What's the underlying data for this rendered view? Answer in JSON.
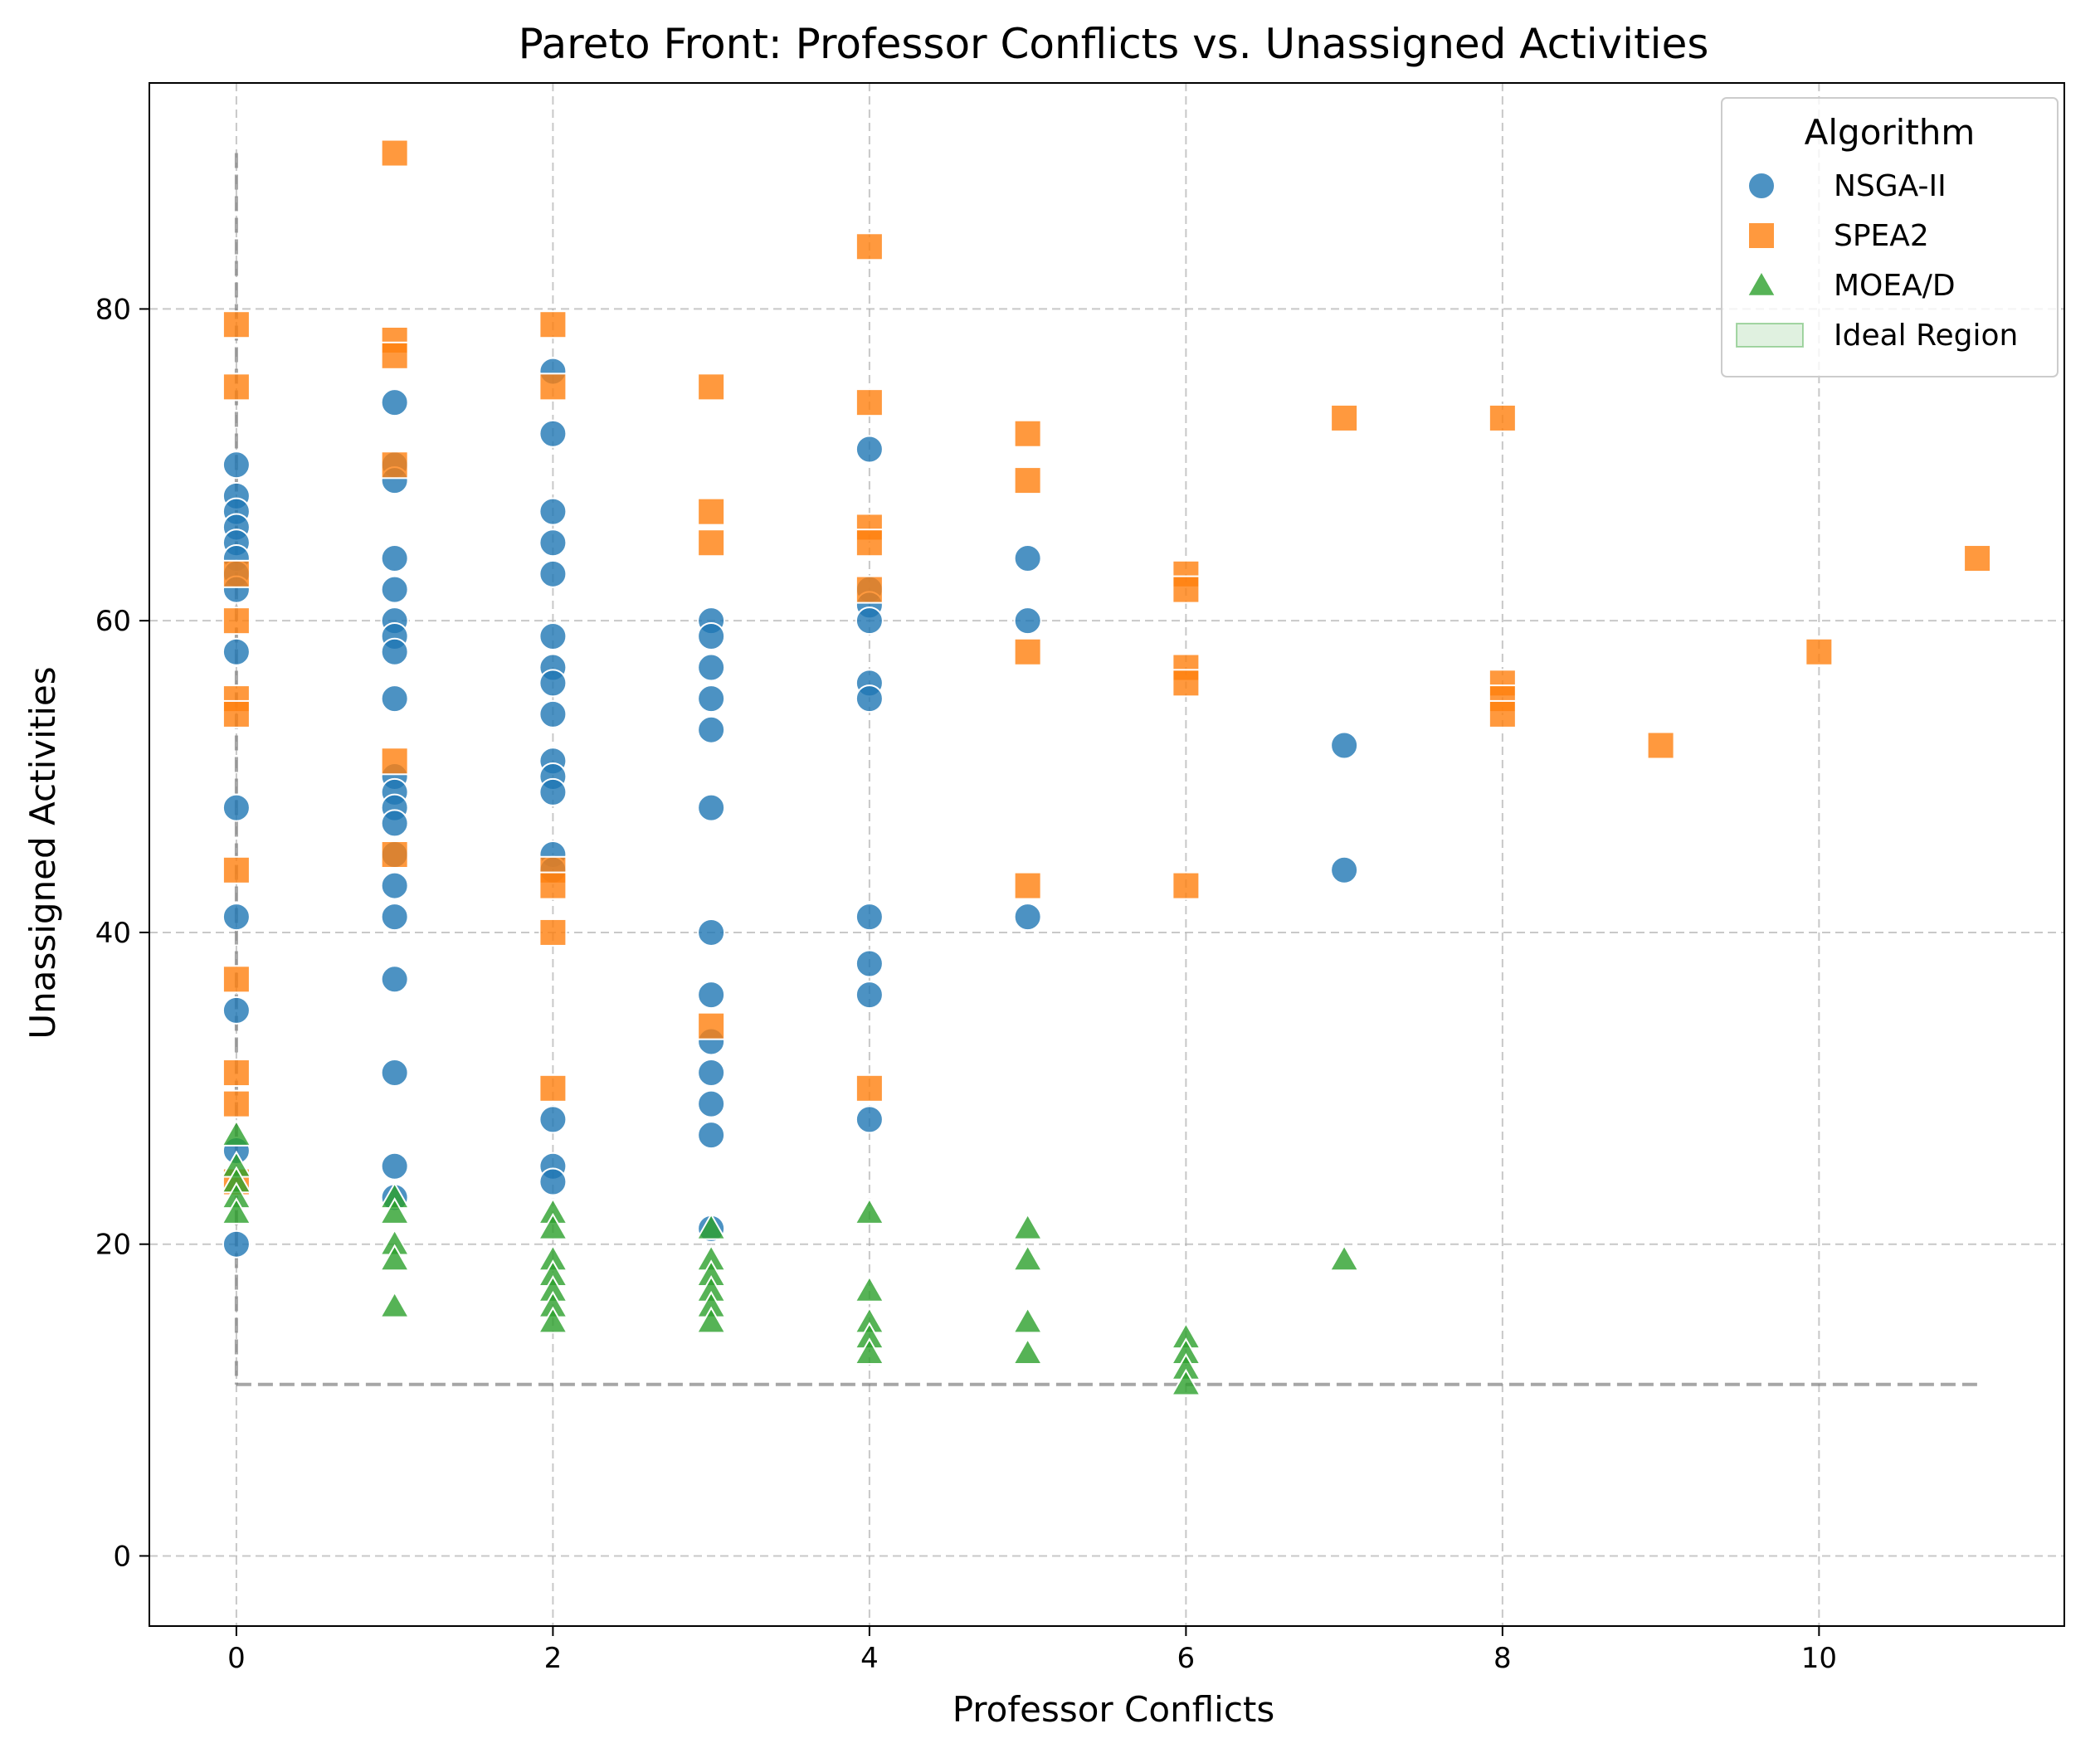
{
  "chart_data": {
    "type": "scatter",
    "title": "Pareto Front: Professor Conflicts vs. Unassigned Activities",
    "xlabel": "Professor Conflicts",
    "ylabel": "Unassigned Activities",
    "xlim": [
      -0.55,
      11.55
    ],
    "ylim": [
      -4.5,
      94.5
    ],
    "xticks": [
      0,
      2,
      4,
      6,
      8,
      10
    ],
    "yticks": [
      0,
      20,
      40,
      60,
      80
    ],
    "grid": true,
    "legend": {
      "title": "Algorithm",
      "placement": "top-right",
      "entries": [
        "NSGA-II",
        "SPEA2",
        "MOEA/D",
        "Ideal Region"
      ]
    },
    "ideal_region": {
      "label": "Ideal Region",
      "x_min": 0,
      "x_max": 11,
      "y_min": 11,
      "y_max": 90,
      "color": "#2ca02c"
    },
    "series": [
      {
        "name": "NSGA-II",
        "marker": "circle",
        "color": "#1f77b4",
        "points": [
          [
            0,
            70
          ],
          [
            0,
            68
          ],
          [
            0,
            67
          ],
          [
            0,
            66
          ],
          [
            0,
            65
          ],
          [
            0,
            64
          ],
          [
            0,
            63
          ],
          [
            0,
            62
          ],
          [
            0,
            58
          ],
          [
            0,
            48
          ],
          [
            0,
            41
          ],
          [
            0,
            35
          ],
          [
            0,
            26
          ],
          [
            0,
            20
          ],
          [
            1,
            74
          ],
          [
            1,
            70
          ],
          [
            1,
            69
          ],
          [
            1,
            64
          ],
          [
            1,
            62
          ],
          [
            1,
            60
          ],
          [
            1,
            59
          ],
          [
            1,
            58
          ],
          [
            1,
            55
          ],
          [
            1,
            50
          ],
          [
            1,
            49
          ],
          [
            1,
            48
          ],
          [
            1,
            47
          ],
          [
            1,
            45
          ],
          [
            1,
            43
          ],
          [
            1,
            41
          ],
          [
            1,
            37
          ],
          [
            1,
            31
          ],
          [
            1,
            25
          ],
          [
            1,
            23
          ],
          [
            2,
            76
          ],
          [
            2,
            72
          ],
          [
            2,
            67
          ],
          [
            2,
            65
          ],
          [
            2,
            63
          ],
          [
            2,
            59
          ],
          [
            2,
            57
          ],
          [
            2,
            56
          ],
          [
            2,
            54
          ],
          [
            2,
            51
          ],
          [
            2,
            50
          ],
          [
            2,
            49
          ],
          [
            2,
            45
          ],
          [
            2,
            44
          ],
          [
            2,
            28
          ],
          [
            2,
            25
          ],
          [
            2,
            24
          ],
          [
            3,
            60
          ],
          [
            3,
            59
          ],
          [
            3,
            57
          ],
          [
            3,
            55
          ],
          [
            3,
            53
          ],
          [
            3,
            48
          ],
          [
            3,
            40
          ],
          [
            3,
            36
          ],
          [
            3,
            33
          ],
          [
            3,
            31
          ],
          [
            3,
            29
          ],
          [
            3,
            27
          ],
          [
            3,
            21
          ],
          [
            4,
            71
          ],
          [
            4,
            62
          ],
          [
            4,
            61
          ],
          [
            4,
            60
          ],
          [
            4,
            56
          ],
          [
            4,
            55
          ],
          [
            4,
            41
          ],
          [
            4,
            38
          ],
          [
            4,
            36
          ],
          [
            4,
            28
          ],
          [
            5,
            64
          ],
          [
            5,
            60
          ],
          [
            5,
            41
          ],
          [
            7,
            52
          ],
          [
            7,
            44
          ]
        ]
      },
      {
        "name": "SPEA2",
        "marker": "square",
        "color": "#ff7f0e",
        "points": [
          [
            0,
            79
          ],
          [
            0,
            75
          ],
          [
            0,
            63
          ],
          [
            0,
            60
          ],
          [
            0,
            55
          ],
          [
            0,
            54
          ],
          [
            0,
            44
          ],
          [
            0,
            37
          ],
          [
            0,
            31
          ],
          [
            0,
            29
          ],
          [
            0,
            24
          ],
          [
            1,
            90
          ],
          [
            1,
            78
          ],
          [
            1,
            77
          ],
          [
            1,
            70
          ],
          [
            1,
            51
          ],
          [
            1,
            45
          ],
          [
            2,
            79
          ],
          [
            2,
            75
          ],
          [
            2,
            44
          ],
          [
            2,
            43
          ],
          [
            2,
            40
          ],
          [
            2,
            30
          ],
          [
            3,
            75
          ],
          [
            3,
            67
          ],
          [
            3,
            65
          ],
          [
            3,
            34
          ],
          [
            4,
            84
          ],
          [
            4,
            74
          ],
          [
            4,
            66
          ],
          [
            4,
            65
          ],
          [
            4,
            62
          ],
          [
            4,
            30
          ],
          [
            5,
            72
          ],
          [
            5,
            69
          ],
          [
            5,
            58
          ],
          [
            5,
            43
          ],
          [
            6,
            63
          ],
          [
            6,
            62
          ],
          [
            6,
            57
          ],
          [
            6,
            56
          ],
          [
            6,
            43
          ],
          [
            7,
            73
          ],
          [
            8,
            73
          ],
          [
            8,
            56
          ],
          [
            8,
            55
          ],
          [
            8,
            54
          ],
          [
            9,
            52
          ],
          [
            10,
            58
          ],
          [
            11,
            64
          ]
        ]
      },
      {
        "name": "MOEA/D",
        "marker": "triangle",
        "color": "#2ca02c",
        "points": [
          [
            0,
            27
          ],
          [
            0,
            25
          ],
          [
            0,
            24
          ],
          [
            0,
            23
          ],
          [
            0,
            22
          ],
          [
            1,
            23
          ],
          [
            1,
            22
          ],
          [
            1,
            20
          ],
          [
            1,
            19
          ],
          [
            1,
            16
          ],
          [
            2,
            22
          ],
          [
            2,
            21
          ],
          [
            2,
            19
          ],
          [
            2,
            18
          ],
          [
            2,
            17
          ],
          [
            2,
            16
          ],
          [
            2,
            15
          ],
          [
            3,
            21
          ],
          [
            3,
            19
          ],
          [
            3,
            18
          ],
          [
            3,
            17
          ],
          [
            3,
            16
          ],
          [
            3,
            15
          ],
          [
            4,
            22
          ],
          [
            4,
            17
          ],
          [
            4,
            15
          ],
          [
            4,
            14
          ],
          [
            4,
            13
          ],
          [
            5,
            21
          ],
          [
            5,
            19
          ],
          [
            5,
            15
          ],
          [
            5,
            13
          ],
          [
            6,
            14
          ],
          [
            6,
            13
          ],
          [
            6,
            12
          ],
          [
            6,
            11
          ],
          [
            7,
            19
          ]
        ]
      }
    ]
  }
}
